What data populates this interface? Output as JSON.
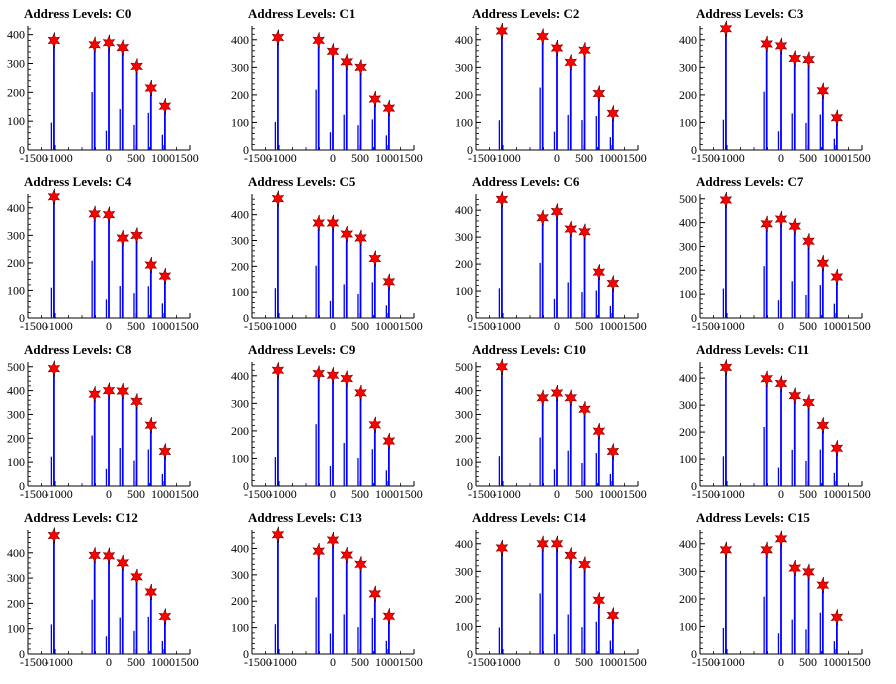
{
  "chart_data": [
    {
      "type": "bar",
      "title": "Address Levels: C0",
      "xlim": [
        -1500,
        1500
      ],
      "ylim": [
        0,
        430
      ],
      "yticks": [
        0,
        100,
        200,
        300,
        400
      ],
      "xticks": [
        -1500,
        -1000,
        0,
        500,
        1000,
        1500
      ],
      "markers": [
        {
          "x": -1020,
          "y": 380
        },
        {
          "x": -265,
          "y": 365
        },
        {
          "x": 0,
          "y": 372
        },
        {
          "x": 255,
          "y": 355
        },
        {
          "x": 510,
          "y": 290
        },
        {
          "x": 775,
          "y": 215
        },
        {
          "x": 1035,
          "y": 152
        }
      ]
    },
    {
      "type": "bar",
      "title": "Address Levels: C1",
      "xlim": [
        -1500,
        1500
      ],
      "ylim": [
        0,
        450
      ],
      "yticks": [
        0,
        100,
        200,
        300,
        400
      ],
      "xticks": [
        -1500,
        -1000,
        0,
        500,
        1000,
        1500
      ],
      "markers": [
        {
          "x": -1020,
          "y": 408
        },
        {
          "x": -265,
          "y": 398
        },
        {
          "x": 0,
          "y": 358
        },
        {
          "x": 255,
          "y": 320
        },
        {
          "x": 510,
          "y": 300
        },
        {
          "x": 775,
          "y": 185
        },
        {
          "x": 1035,
          "y": 152
        }
      ]
    },
    {
      "type": "bar",
      "title": "Address Levels: C2",
      "xlim": [
        -1500,
        1500
      ],
      "ylim": [
        0,
        450
      ],
      "yticks": [
        0,
        100,
        200,
        300,
        400
      ],
      "xticks": [
        -1500,
        -1000,
        0,
        500,
        1000,
        1500
      ],
      "markers": [
        {
          "x": -1020,
          "y": 432
        },
        {
          "x": -265,
          "y": 412
        },
        {
          "x": 0,
          "y": 370
        },
        {
          "x": 255,
          "y": 318
        },
        {
          "x": 510,
          "y": 362
        },
        {
          "x": 775,
          "y": 205
        },
        {
          "x": 1035,
          "y": 133
        }
      ]
    },
    {
      "type": "bar",
      "title": "Address Levels: C3",
      "xlim": [
        -1500,
        1500
      ],
      "ylim": [
        0,
        450
      ],
      "yticks": [
        0,
        100,
        200,
        300,
        400
      ],
      "xticks": [
        -1500,
        -1000,
        0,
        500,
        1000,
        1500
      ],
      "markers": [
        {
          "x": -1020,
          "y": 440
        },
        {
          "x": -265,
          "y": 385
        },
        {
          "x": 0,
          "y": 378
        },
        {
          "x": 255,
          "y": 332
        },
        {
          "x": 510,
          "y": 328
        },
        {
          "x": 775,
          "y": 215
        },
        {
          "x": 1035,
          "y": 117
        }
      ]
    },
    {
      "type": "bar",
      "title": "Address Levels: C4",
      "xlim": [
        -1500,
        1500
      ],
      "ylim": [
        0,
        450
      ],
      "yticks": [
        0,
        100,
        200,
        300,
        400
      ],
      "xticks": [
        -1500,
        -1000,
        0,
        500,
        1000,
        1500
      ],
      "markers": [
        {
          "x": -1020,
          "y": 440
        },
        {
          "x": -265,
          "y": 378
        },
        {
          "x": 0,
          "y": 375
        },
        {
          "x": 255,
          "y": 290
        },
        {
          "x": 510,
          "y": 300
        },
        {
          "x": 775,
          "y": 192
        },
        {
          "x": 1035,
          "y": 152
        }
      ]
    },
    {
      "type": "bar",
      "title": "Address Levels: C5",
      "xlim": [
        -1500,
        1500
      ],
      "ylim": [
        0,
        480
      ],
      "yticks": [
        0,
        100,
        200,
        300,
        400
      ],
      "xticks": [
        -1500,
        -1000,
        0,
        500,
        1000,
        1500
      ],
      "markers": [
        {
          "x": -1020,
          "y": 462
        },
        {
          "x": -265,
          "y": 368
        },
        {
          "x": 0,
          "y": 368
        },
        {
          "x": 255,
          "y": 325
        },
        {
          "x": 510,
          "y": 310
        },
        {
          "x": 775,
          "y": 230
        },
        {
          "x": 1035,
          "y": 140
        }
      ]
    },
    {
      "type": "bar",
      "title": "Address Levels: C6",
      "xlim": [
        -1500,
        1500
      ],
      "ylim": [
        0,
        460
      ],
      "yticks": [
        0,
        100,
        200,
        300,
        400
      ],
      "xticks": [
        -1500,
        -1000,
        0,
        500,
        1000,
        1500
      ],
      "markers": [
        {
          "x": -1020,
          "y": 440
        },
        {
          "x": -265,
          "y": 372
        },
        {
          "x": 0,
          "y": 395
        },
        {
          "x": 255,
          "y": 330
        },
        {
          "x": 510,
          "y": 320
        },
        {
          "x": 775,
          "y": 170
        },
        {
          "x": 1035,
          "y": 128
        }
      ]
    },
    {
      "type": "bar",
      "title": "Address Levels: C7",
      "xlim": [
        -1500,
        1500
      ],
      "ylim": [
        0,
        520
      ],
      "yticks": [
        0,
        100,
        200,
        300,
        400,
        500
      ],
      "xticks": [
        -1500,
        -1000,
        0,
        500,
        1000,
        1500
      ],
      "markers": [
        {
          "x": -1020,
          "y": 495
        },
        {
          "x": -265,
          "y": 395
        },
        {
          "x": 0,
          "y": 415
        },
        {
          "x": 255,
          "y": 385
        },
        {
          "x": 510,
          "y": 322
        },
        {
          "x": 775,
          "y": 230
        },
        {
          "x": 1035,
          "y": 172
        }
      ]
    },
    {
      "type": "bar",
      "title": "Address Levels: C8",
      "xlim": [
        -1500,
        1500
      ],
      "ylim": [
        0,
        520
      ],
      "yticks": [
        0,
        100,
        200,
        300,
        400,
        500
      ],
      "xticks": [
        -1500,
        -1000,
        0,
        500,
        1000,
        1500
      ],
      "markers": [
        {
          "x": -1020,
          "y": 492
        },
        {
          "x": -265,
          "y": 385
        },
        {
          "x": 0,
          "y": 400
        },
        {
          "x": 255,
          "y": 398
        },
        {
          "x": 510,
          "y": 355
        },
        {
          "x": 775,
          "y": 255
        },
        {
          "x": 1035,
          "y": 145
        }
      ]
    },
    {
      "type": "bar",
      "title": "Address Levels: C9",
      "xlim": [
        -1500,
        1500
      ],
      "ylim": [
        0,
        450
      ],
      "yticks": [
        0,
        100,
        200,
        300,
        400
      ],
      "xticks": [
        -1500,
        -1000,
        0,
        500,
        1000,
        1500
      ],
      "markers": [
        {
          "x": -1020,
          "y": 420
        },
        {
          "x": -265,
          "y": 408
        },
        {
          "x": 0,
          "y": 402
        },
        {
          "x": 255,
          "y": 390
        },
        {
          "x": 510,
          "y": 338
        },
        {
          "x": 775,
          "y": 222
        },
        {
          "x": 1035,
          "y": 163
        }
      ]
    },
    {
      "type": "bar",
      "title": "Address Levels: C10",
      "xlim": [
        -1500,
        1500
      ],
      "ylim": [
        0,
        520
      ],
      "yticks": [
        0,
        100,
        200,
        300,
        400,
        500
      ],
      "xticks": [
        -1500,
        -1000,
        0,
        500,
        1000,
        1500
      ],
      "markers": [
        {
          "x": -1020,
          "y": 500
        },
        {
          "x": -265,
          "y": 370
        },
        {
          "x": 0,
          "y": 390
        },
        {
          "x": 255,
          "y": 370
        },
        {
          "x": 510,
          "y": 322
        },
        {
          "x": 775,
          "y": 230
        },
        {
          "x": 1035,
          "y": 145
        }
      ]
    },
    {
      "type": "bar",
      "title": "Address Levels: C11",
      "xlim": [
        -1500,
        1500
      ],
      "ylim": [
        0,
        460
      ],
      "yticks": [
        0,
        100,
        200,
        300,
        400
      ],
      "xticks": [
        -1500,
        -1000,
        0,
        500,
        1000,
        1500
      ],
      "markers": [
        {
          "x": -1020,
          "y": 440
        },
        {
          "x": -265,
          "y": 398
        },
        {
          "x": 0,
          "y": 380
        },
        {
          "x": 255,
          "y": 335
        },
        {
          "x": 510,
          "y": 310
        },
        {
          "x": 775,
          "y": 225
        },
        {
          "x": 1035,
          "y": 140
        }
      ]
    },
    {
      "type": "bar",
      "title": "Address Levels: C12",
      "xlim": [
        -1500,
        1500
      ],
      "ylim": [
        0,
        490
      ],
      "yticks": [
        0,
        100,
        200,
        300,
        400
      ],
      "xticks": [
        -1500,
        -1000,
        0,
        500,
        1000,
        1500
      ],
      "markers": [
        {
          "x": -1020,
          "y": 468
        },
        {
          "x": -265,
          "y": 390
        },
        {
          "x": 0,
          "y": 388
        },
        {
          "x": 255,
          "y": 360
        },
        {
          "x": 510,
          "y": 305
        },
        {
          "x": 775,
          "y": 245
        },
        {
          "x": 1035,
          "y": 148
        }
      ]
    },
    {
      "type": "bar",
      "title": "Address Levels: C13",
      "xlim": [
        -1500,
        1500
      ],
      "ylim": [
        0,
        470
      ],
      "yticks": [
        0,
        100,
        200,
        300,
        400
      ],
      "xticks": [
        -1500,
        -1000,
        0,
        500,
        1000,
        1500
      ],
      "markers": [
        {
          "x": -1020,
          "y": 452
        },
        {
          "x": -265,
          "y": 390
        },
        {
          "x": 0,
          "y": 432
        },
        {
          "x": 255,
          "y": 375
        },
        {
          "x": 510,
          "y": 340
        },
        {
          "x": 775,
          "y": 228
        },
        {
          "x": 1035,
          "y": 143
        }
      ]
    },
    {
      "type": "bar",
      "title": "Address Levels: C14",
      "xlim": [
        -1500,
        1500
      ],
      "ylim": [
        0,
        450
      ],
      "yticks": [
        0,
        100,
        200,
        300,
        400
      ],
      "xticks": [
        -1500,
        -1000,
        0,
        500,
        1000,
        1500
      ],
      "markers": [
        {
          "x": -1020,
          "y": 385
        },
        {
          "x": -265,
          "y": 400
        },
        {
          "x": 0,
          "y": 400
        },
        {
          "x": 255,
          "y": 358
        },
        {
          "x": 510,
          "y": 325
        },
        {
          "x": 775,
          "y": 195
        },
        {
          "x": 1035,
          "y": 140
        }
      ]
    },
    {
      "type": "bar",
      "title": "Address Levels: C15",
      "xlim": [
        -1500,
        1500
      ],
      "ylim": [
        0,
        450
      ],
      "yticks": [
        0,
        100,
        200,
        300,
        400
      ],
      "xticks": [
        -1500,
        -1000,
        0,
        500,
        1000,
        1500
      ],
      "markers": [
        {
          "x": -1020,
          "y": 378
        },
        {
          "x": -265,
          "y": 378
        },
        {
          "x": 0,
          "y": 418
        },
        {
          "x": 255,
          "y": 312
        },
        {
          "x": 510,
          "y": 298
        },
        {
          "x": 775,
          "y": 250
        },
        {
          "x": 1035,
          "y": 133
        }
      ]
    }
  ],
  "colors": {
    "histogram": "#0000ff",
    "marker": "#ff0000",
    "marker_outline": "#800000",
    "axis": "#000000"
  }
}
